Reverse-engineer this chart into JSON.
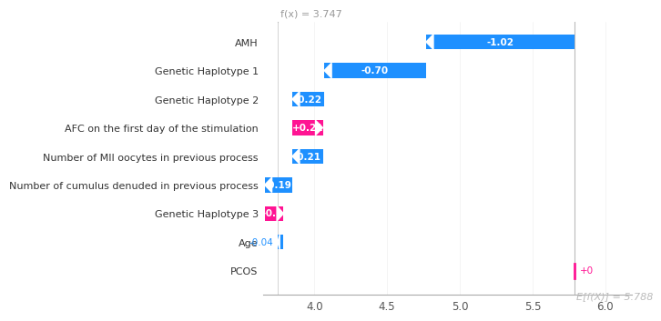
{
  "title": "f(x) = 3.747",
  "xlabel_annotation": "E[f(X)] = 5.788",
  "base_value": 5.788,
  "fx_value": 3.747,
  "features": [
    {
      "label": "AMH",
      "value": -1.02,
      "color": "#1E90FF"
    },
    {
      "label": "Genetic Haplotype 1",
      "value": -0.7,
      "color": "#1E90FF"
    },
    {
      "label": "Genetic Haplotype 2",
      "value": -0.22,
      "color": "#1E90FF"
    },
    {
      "label": "AFC on the first day of the stimulation",
      "value": 0.21,
      "color": "#FF1493"
    },
    {
      "label": "Number of MII oocytes in previous process",
      "value": -0.21,
      "color": "#1E90FF"
    },
    {
      "label": "Number of cumulus denuded in previous process",
      "value": -0.19,
      "color": "#1E90FF"
    },
    {
      "label": "Genetic Haplotype 3",
      "value": 0.13,
      "color": "#FF1493"
    },
    {
      "label": "Age",
      "value": -0.04,
      "color": "#1E90FF"
    },
    {
      "label": "PCOS",
      "value": 0.0,
      "color": "#FF1493"
    }
  ],
  "xlim": [
    3.65,
    6.18
  ],
  "xticks": [
    4.0,
    4.5,
    5.0,
    5.5,
    6.0
  ],
  "bg_color": "#FFFFFF",
  "blue": "#1E90FF",
  "red": "#FF1493"
}
